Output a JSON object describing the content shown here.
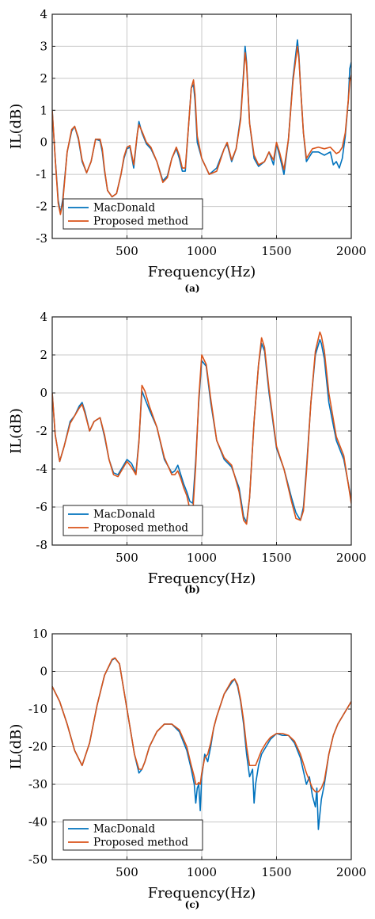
{
  "colors": {
    "macdonald": "#0072BD",
    "proposed": "#D95319",
    "grid": "#c8c8c8",
    "axes": "#222222"
  },
  "chart_data": [
    {
      "type": "line",
      "panel_label": "(a)",
      "xlabel": "Frequency(Hz)",
      "ylabel": "IL(dB)",
      "xlim": [
        0,
        2000
      ],
      "ylim": [
        -3,
        4
      ],
      "xticks": [
        500,
        1000,
        1500,
        2000
      ],
      "yticks": [
        -3,
        -2,
        -1,
        0,
        1,
        2,
        3,
        4
      ],
      "grid": true,
      "legend_position": "bottom-left",
      "series": [
        {
          "name": "MacDonald",
          "color": "#0072BD",
          "x": [
            0,
            20,
            40,
            55,
            70,
            100,
            130,
            150,
            175,
            200,
            230,
            260,
            290,
            320,
            335,
            350,
            370,
            400,
            430,
            460,
            480,
            500,
            520,
            545,
            570,
            580,
            600,
            630,
            660,
            700,
            740,
            770,
            800,
            830,
            850,
            870,
            890,
            910,
            930,
            945,
            955,
            970,
            1000,
            1050,
            1100,
            1150,
            1170,
            1200,
            1230,
            1260,
            1280,
            1290,
            1300,
            1320,
            1350,
            1380,
            1420,
            1450,
            1480,
            1500,
            1520,
            1550,
            1580,
            1610,
            1640,
            1650,
            1660,
            1680,
            1700,
            1740,
            1780,
            1820,
            1860,
            1880,
            1900,
            1920,
            1940,
            1960,
            1980,
            1990,
            2000
          ],
          "y": [
            1.0,
            -0.5,
            -1.8,
            -2.2,
            -1.8,
            -0.3,
            0.35,
            0.5,
            0.1,
            -0.6,
            -0.95,
            -0.6,
            0.1,
            0.05,
            -0.3,
            -0.9,
            -1.5,
            -1.7,
            -1.6,
            -1.0,
            -0.5,
            -0.2,
            -0.15,
            -0.8,
            0.3,
            0.65,
            0.3,
            -0.05,
            -0.2,
            -0.6,
            -1.2,
            -1.05,
            -0.5,
            -0.2,
            -0.5,
            -0.9,
            -0.9,
            0.4,
            1.7,
            1.8,
            1.3,
            0.0,
            -0.5,
            -1.0,
            -0.8,
            -0.2,
            -0.05,
            -0.6,
            -0.2,
            0.8,
            2.2,
            3.0,
            2.5,
            0.6,
            -0.5,
            -0.75,
            -0.6,
            -0.3,
            -0.7,
            -0.05,
            -0.4,
            -1.0,
            0.1,
            2.0,
            3.2,
            2.7,
            1.8,
            0.3,
            -0.6,
            -0.3,
            -0.3,
            -0.4,
            -0.3,
            -0.7,
            -0.6,
            -0.8,
            -0.5,
            0.2,
            1.3,
            2.3,
            2.5
          ]
        },
        {
          "name": "Proposed method",
          "color": "#D95319",
          "x": [
            0,
            20,
            40,
            55,
            70,
            100,
            130,
            150,
            175,
            200,
            230,
            260,
            290,
            320,
            335,
            350,
            370,
            400,
            430,
            460,
            480,
            500,
            520,
            545,
            570,
            580,
            600,
            630,
            660,
            700,
            740,
            770,
            800,
            830,
            850,
            870,
            890,
            910,
            930,
            945,
            955,
            970,
            1000,
            1050,
            1100,
            1150,
            1170,
            1200,
            1230,
            1260,
            1280,
            1290,
            1300,
            1320,
            1350,
            1380,
            1420,
            1450,
            1480,
            1500,
            1520,
            1550,
            1580,
            1610,
            1640,
            1650,
            1660,
            1680,
            1700,
            1740,
            1780,
            1820,
            1860,
            1880,
            1900,
            1920,
            1940,
            1960,
            1980,
            1990,
            2000
          ],
          "y": [
            1.0,
            -0.5,
            -1.9,
            -2.25,
            -1.9,
            -0.3,
            0.4,
            0.5,
            0.15,
            -0.55,
            -0.95,
            -0.6,
            0.1,
            0.1,
            -0.2,
            -0.85,
            -1.5,
            -1.7,
            -1.6,
            -1.0,
            -0.45,
            -0.15,
            -0.1,
            -0.7,
            0.3,
            0.55,
            0.35,
            0.0,
            -0.15,
            -0.6,
            -1.25,
            -1.1,
            -0.5,
            -0.15,
            -0.4,
            -0.8,
            -0.8,
            0.4,
            1.7,
            1.95,
            1.5,
            0.2,
            -0.5,
            -1.0,
            -0.9,
            -0.2,
            0.0,
            -0.55,
            -0.2,
            0.7,
            2.1,
            2.8,
            2.4,
            0.6,
            -0.4,
            -0.7,
            -0.6,
            -0.3,
            -0.55,
            0.0,
            -0.3,
            -0.85,
            0.1,
            1.9,
            3.0,
            2.6,
            1.8,
            0.3,
            -0.5,
            -0.2,
            -0.15,
            -0.2,
            -0.15,
            -0.25,
            -0.35,
            -0.3,
            -0.15,
            0.3,
            1.3,
            1.9,
            2.1
          ]
        }
      ]
    },
    {
      "type": "line",
      "panel_label": "(b)",
      "xlabel": "Frequency(Hz)",
      "ylabel": "IL(dB)",
      "xlim": [
        0,
        2000
      ],
      "ylim": [
        -8,
        4
      ],
      "xticks": [
        500,
        1000,
        1500,
        2000
      ],
      "yticks": [
        -8,
        -6,
        -4,
        -2,
        0,
        2,
        4
      ],
      "grid": true,
      "legend_position": "bottom-left",
      "series": [
        {
          "name": "MacDonald",
          "color": "#0072BD",
          "x": [
            0,
            20,
            50,
            80,
            120,
            150,
            180,
            200,
            220,
            250,
            280,
            320,
            350,
            380,
            410,
            440,
            470,
            500,
            530,
            560,
            580,
            600,
            620,
            650,
            700,
            750,
            800,
            820,
            840,
            860,
            880,
            900,
            920,
            940,
            960,
            980,
            1000,
            1030,
            1060,
            1100,
            1150,
            1200,
            1250,
            1280,
            1300,
            1320,
            1350,
            1380,
            1400,
            1420,
            1450,
            1500,
            1550,
            1600,
            1630,
            1660,
            1680,
            1700,
            1730,
            1760,
            1790,
            1800,
            1820,
            1850,
            1900,
            1950,
            2000
          ],
          "y": [
            0.0,
            -2.2,
            -3.6,
            -2.8,
            -1.5,
            -1.2,
            -0.7,
            -0.5,
            -1.0,
            -2.0,
            -1.5,
            -1.3,
            -2.3,
            -3.5,
            -4.2,
            -4.3,
            -3.9,
            -3.5,
            -3.7,
            -4.2,
            -2.5,
            0.1,
            -0.3,
            -0.9,
            -1.8,
            -3.5,
            -4.2,
            -4.1,
            -3.8,
            -4.3,
            -4.8,
            -5.2,
            -5.7,
            -5.8,
            -3.5,
            -0.5,
            1.7,
            1.4,
            -0.5,
            -2.5,
            -3.5,
            -3.9,
            -5.0,
            -6.5,
            -6.8,
            -5.5,
            -1.5,
            1.5,
            2.6,
            2.2,
            0.0,
            -2.9,
            -4.0,
            -5.5,
            -6.3,
            -6.7,
            -6.0,
            -4.0,
            -0.5,
            2.0,
            2.8,
            2.6,
            1.8,
            -0.5,
            -2.5,
            -3.5,
            -5.6
          ]
        },
        {
          "name": "Proposed method",
          "color": "#D95319",
          "x": [
            0,
            20,
            50,
            80,
            120,
            150,
            180,
            200,
            220,
            250,
            280,
            320,
            350,
            380,
            410,
            440,
            470,
            500,
            530,
            560,
            580,
            600,
            620,
            650,
            700,
            750,
            800,
            820,
            840,
            860,
            880,
            900,
            920,
            940,
            960,
            980,
            1000,
            1030,
            1060,
            1100,
            1150,
            1200,
            1250,
            1280,
            1300,
            1320,
            1350,
            1380,
            1400,
            1420,
            1450,
            1500,
            1550,
            1600,
            1630,
            1660,
            1680,
            1700,
            1730,
            1760,
            1790,
            1800,
            1820,
            1850,
            1900,
            1950,
            2000
          ],
          "y": [
            0.0,
            -2.2,
            -3.6,
            -2.8,
            -1.6,
            -1.2,
            -0.8,
            -0.6,
            -1.1,
            -2.0,
            -1.5,
            -1.3,
            -2.2,
            -3.5,
            -4.3,
            -4.4,
            -4.0,
            -3.6,
            -3.9,
            -4.3,
            -2.6,
            0.4,
            0.1,
            -0.7,
            -1.8,
            -3.4,
            -4.3,
            -4.3,
            -4.1,
            -4.5,
            -5.0,
            -5.4,
            -6.1,
            -6.3,
            -3.8,
            -0.3,
            2.0,
            1.5,
            -0.3,
            -2.5,
            -3.4,
            -3.8,
            -5.2,
            -6.7,
            -6.9,
            -5.5,
            -1.5,
            1.5,
            2.9,
            2.4,
            0.2,
            -2.8,
            -4.0,
            -5.7,
            -6.6,
            -6.7,
            -6.2,
            -4.2,
            -0.5,
            2.2,
            3.2,
            3.0,
            2.2,
            0.0,
            -2.3,
            -3.3,
            -5.8
          ]
        }
      ]
    },
    {
      "type": "line",
      "panel_label": "(c)",
      "xlabel": "Frequency(Hz)",
      "ylabel": "IL(dB)",
      "xlim": [
        0,
        2000
      ],
      "ylim": [
        -50,
        10
      ],
      "xticks": [
        500,
        1000,
        1500,
        2000
      ],
      "yticks": [
        -50,
        -40,
        -30,
        -20,
        -10,
        0,
        10
      ],
      "grid": true,
      "legend_position": "bottom-left",
      "series": [
        {
          "name": "MacDonald",
          "color": "#0072BD",
          "x": [
            0,
            50,
            100,
            150,
            200,
            250,
            300,
            350,
            400,
            420,
            450,
            500,
            550,
            580,
            600,
            620,
            650,
            700,
            750,
            800,
            850,
            900,
            930,
            950,
            960,
            970,
            980,
            990,
            1000,
            1020,
            1040,
            1060,
            1080,
            1100,
            1150,
            1200,
            1220,
            1240,
            1260,
            1280,
            1300,
            1320,
            1340,
            1350,
            1360,
            1380,
            1400,
            1430,
            1460,
            1500,
            1540,
            1580,
            1620,
            1660,
            1700,
            1720,
            1740,
            1760,
            1770,
            1780,
            1800,
            1820,
            1850,
            1880,
            1910,
            1940,
            1970,
            2000
          ],
          "y": [
            -4,
            -8,
            -14,
            -21,
            -25,
            -19,
            -9,
            -1,
            3,
            3.5,
            2,
            -10,
            -22,
            -27,
            -26,
            -24,
            -20,
            -16,
            -14,
            -14,
            -16,
            -21,
            -26,
            -30,
            -35,
            -31,
            -30,
            -37,
            -28,
            -22,
            -24,
            -20,
            -15,
            -12,
            -6,
            -3,
            -2,
            -4,
            -8,
            -14,
            -22,
            -28,
            -26,
            -35,
            -30,
            -25,
            -22,
            -20,
            -18,
            -16.5,
            -17,
            -17,
            -19,
            -23,
            -30,
            -28,
            -33,
            -36,
            -31,
            -42,
            -34,
            -30,
            -22,
            -17,
            -14,
            -12,
            -10,
            -8
          ]
        },
        {
          "name": "Proposed method",
          "color": "#D95319",
          "x": [
            0,
            50,
            100,
            150,
            200,
            250,
            300,
            350,
            400,
            420,
            450,
            500,
            550,
            580,
            600,
            620,
            650,
            700,
            750,
            800,
            850,
            900,
            930,
            950,
            960,
            970,
            980,
            990,
            1000,
            1020,
            1040,
            1060,
            1080,
            1100,
            1150,
            1200,
            1220,
            1240,
            1260,
            1280,
            1300,
            1320,
            1340,
            1350,
            1360,
            1380,
            1400,
            1430,
            1460,
            1500,
            1540,
            1580,
            1620,
            1660,
            1700,
            1720,
            1740,
            1760,
            1770,
            1780,
            1800,
            1820,
            1850,
            1880,
            1910,
            1940,
            1970,
            2000
          ],
          "y": [
            -4,
            -8,
            -14,
            -21,
            -25,
            -19,
            -9,
            -1,
            3.2,
            3.6,
            2,
            -10,
            -22,
            -26,
            -26,
            -24,
            -20,
            -16,
            -14,
            -14,
            -15.5,
            -20,
            -25,
            -28,
            -30,
            -30,
            -29.5,
            -30,
            -27,
            -23,
            -22,
            -19,
            -15,
            -12,
            -6,
            -2.5,
            -2,
            -3.5,
            -7.5,
            -13,
            -20,
            -25,
            -25,
            -25,
            -25,
            -23,
            -21,
            -19,
            -17.5,
            -16.5,
            -16.5,
            -17,
            -18.5,
            -22,
            -27,
            -29,
            -31,
            -32,
            -32,
            -32,
            -31,
            -29,
            -22,
            -17,
            -14,
            -12,
            -10,
            -8
          ]
        }
      ]
    }
  ]
}
